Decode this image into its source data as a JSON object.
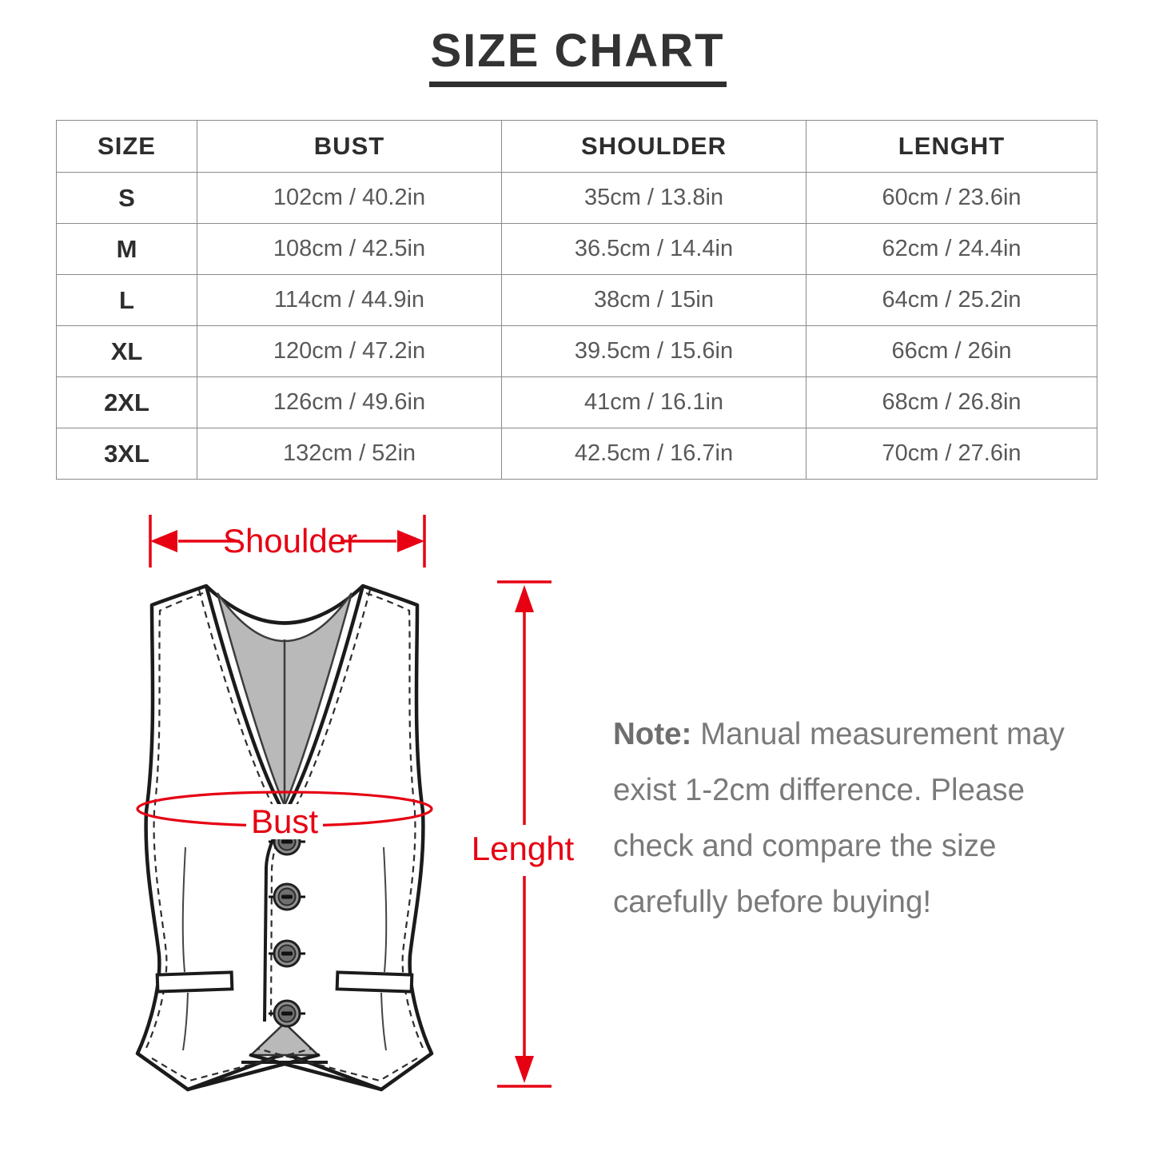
{
  "title": "SIZE CHART",
  "table": {
    "headers": [
      "SIZE",
      "BUST",
      "SHOULDER",
      "LENGHT"
    ],
    "rows": [
      [
        "S",
        "102cm / 40.2in",
        "35cm / 13.8in",
        "60cm / 23.6in"
      ],
      [
        "M",
        "108cm / 42.5in",
        "36.5cm / 14.4in",
        "62cm / 24.4in"
      ],
      [
        "L",
        "114cm / 44.9in",
        "38cm / 15in",
        "64cm / 25.2in"
      ],
      [
        "XL",
        "120cm / 47.2in",
        "39.5cm / 15.6in",
        "66cm / 26in"
      ],
      [
        "2XL",
        "126cm / 49.6in",
        "41cm / 16.1in",
        "68cm / 26.8in"
      ],
      [
        "3XL",
        "132cm / 52in",
        "42.5cm / 16.7in",
        "70cm / 27.6in"
      ]
    ]
  },
  "diagram": {
    "shoulder_label": "Shoulder",
    "bust_label": "Bust",
    "length_label": "Lenght",
    "accent_color": "#e60012",
    "lining_color": "#b9b9b9"
  },
  "note": {
    "prefix": "Note:",
    "body": " Manual measurement may exist 1-2cm difference. Please check and compare the size carefully before buying!"
  }
}
